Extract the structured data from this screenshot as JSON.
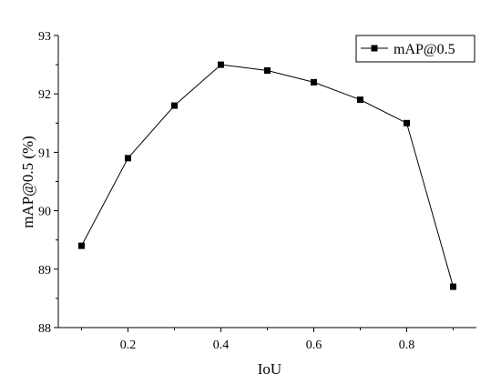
{
  "chart_data": {
    "type": "line",
    "xlabel": "IoU",
    "ylabel": "mAP@0.5 (%)",
    "xlim": [
      0.05,
      0.95
    ],
    "ylim": [
      88,
      93
    ],
    "xticks": [
      "0.2",
      "0.4",
      "0.6",
      "0.8"
    ],
    "xtick_values": [
      0.2,
      0.4,
      0.6,
      0.8
    ],
    "yticks": [
      "88",
      "89",
      "90",
      "91",
      "92",
      "93"
    ],
    "ytick_values": [
      88,
      89,
      90,
      91,
      92,
      93
    ],
    "grid": false,
    "legend_position": "top-right",
    "series": [
      {
        "name": "mAP@0.5",
        "marker": "square",
        "color": "#000000",
        "x": [
          0.1,
          0.2,
          0.3,
          0.4,
          0.5,
          0.6,
          0.7,
          0.8,
          0.9
        ],
        "y": [
          89.4,
          90.9,
          91.8,
          92.5,
          92.4,
          92.2,
          91.9,
          91.5,
          88.7
        ]
      }
    ]
  }
}
